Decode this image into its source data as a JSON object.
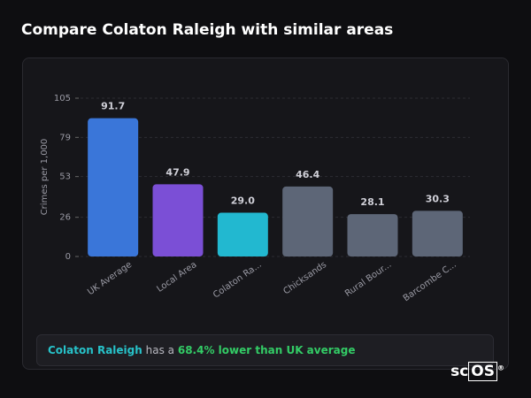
{
  "title": "Compare Colaton Raleigh with similar areas",
  "chart_data": {
    "type": "bar",
    "ylabel": "Crimes per 1,000",
    "categories": [
      "UK Average",
      "Local Area",
      "Colaton Ra...",
      "Chicksands",
      "Rural Bour...",
      "Barcombe C..."
    ],
    "values": [
      91.7,
      47.9,
      29.0,
      46.4,
      28.1,
      30.3
    ],
    "value_labels": [
      "91.7",
      "47.9",
      "29.0",
      "46.4",
      "28.1",
      "30.3"
    ],
    "colors": [
      "#3a76d9",
      "#7b4fd6",
      "#22b8d0",
      "#5d6677",
      "#5d6677",
      "#5d6677"
    ],
    "ylim": [
      0,
      105
    ],
    "yticks": [
      0,
      26,
      53,
      79,
      105
    ],
    "grid": true
  },
  "summary": {
    "area": "Colaton Raleigh",
    "connector": "has a",
    "comparison": "68.4% lower than UK average"
  },
  "logo": {
    "prefix": "sc",
    "boxed": "OS",
    "mark": "®"
  }
}
